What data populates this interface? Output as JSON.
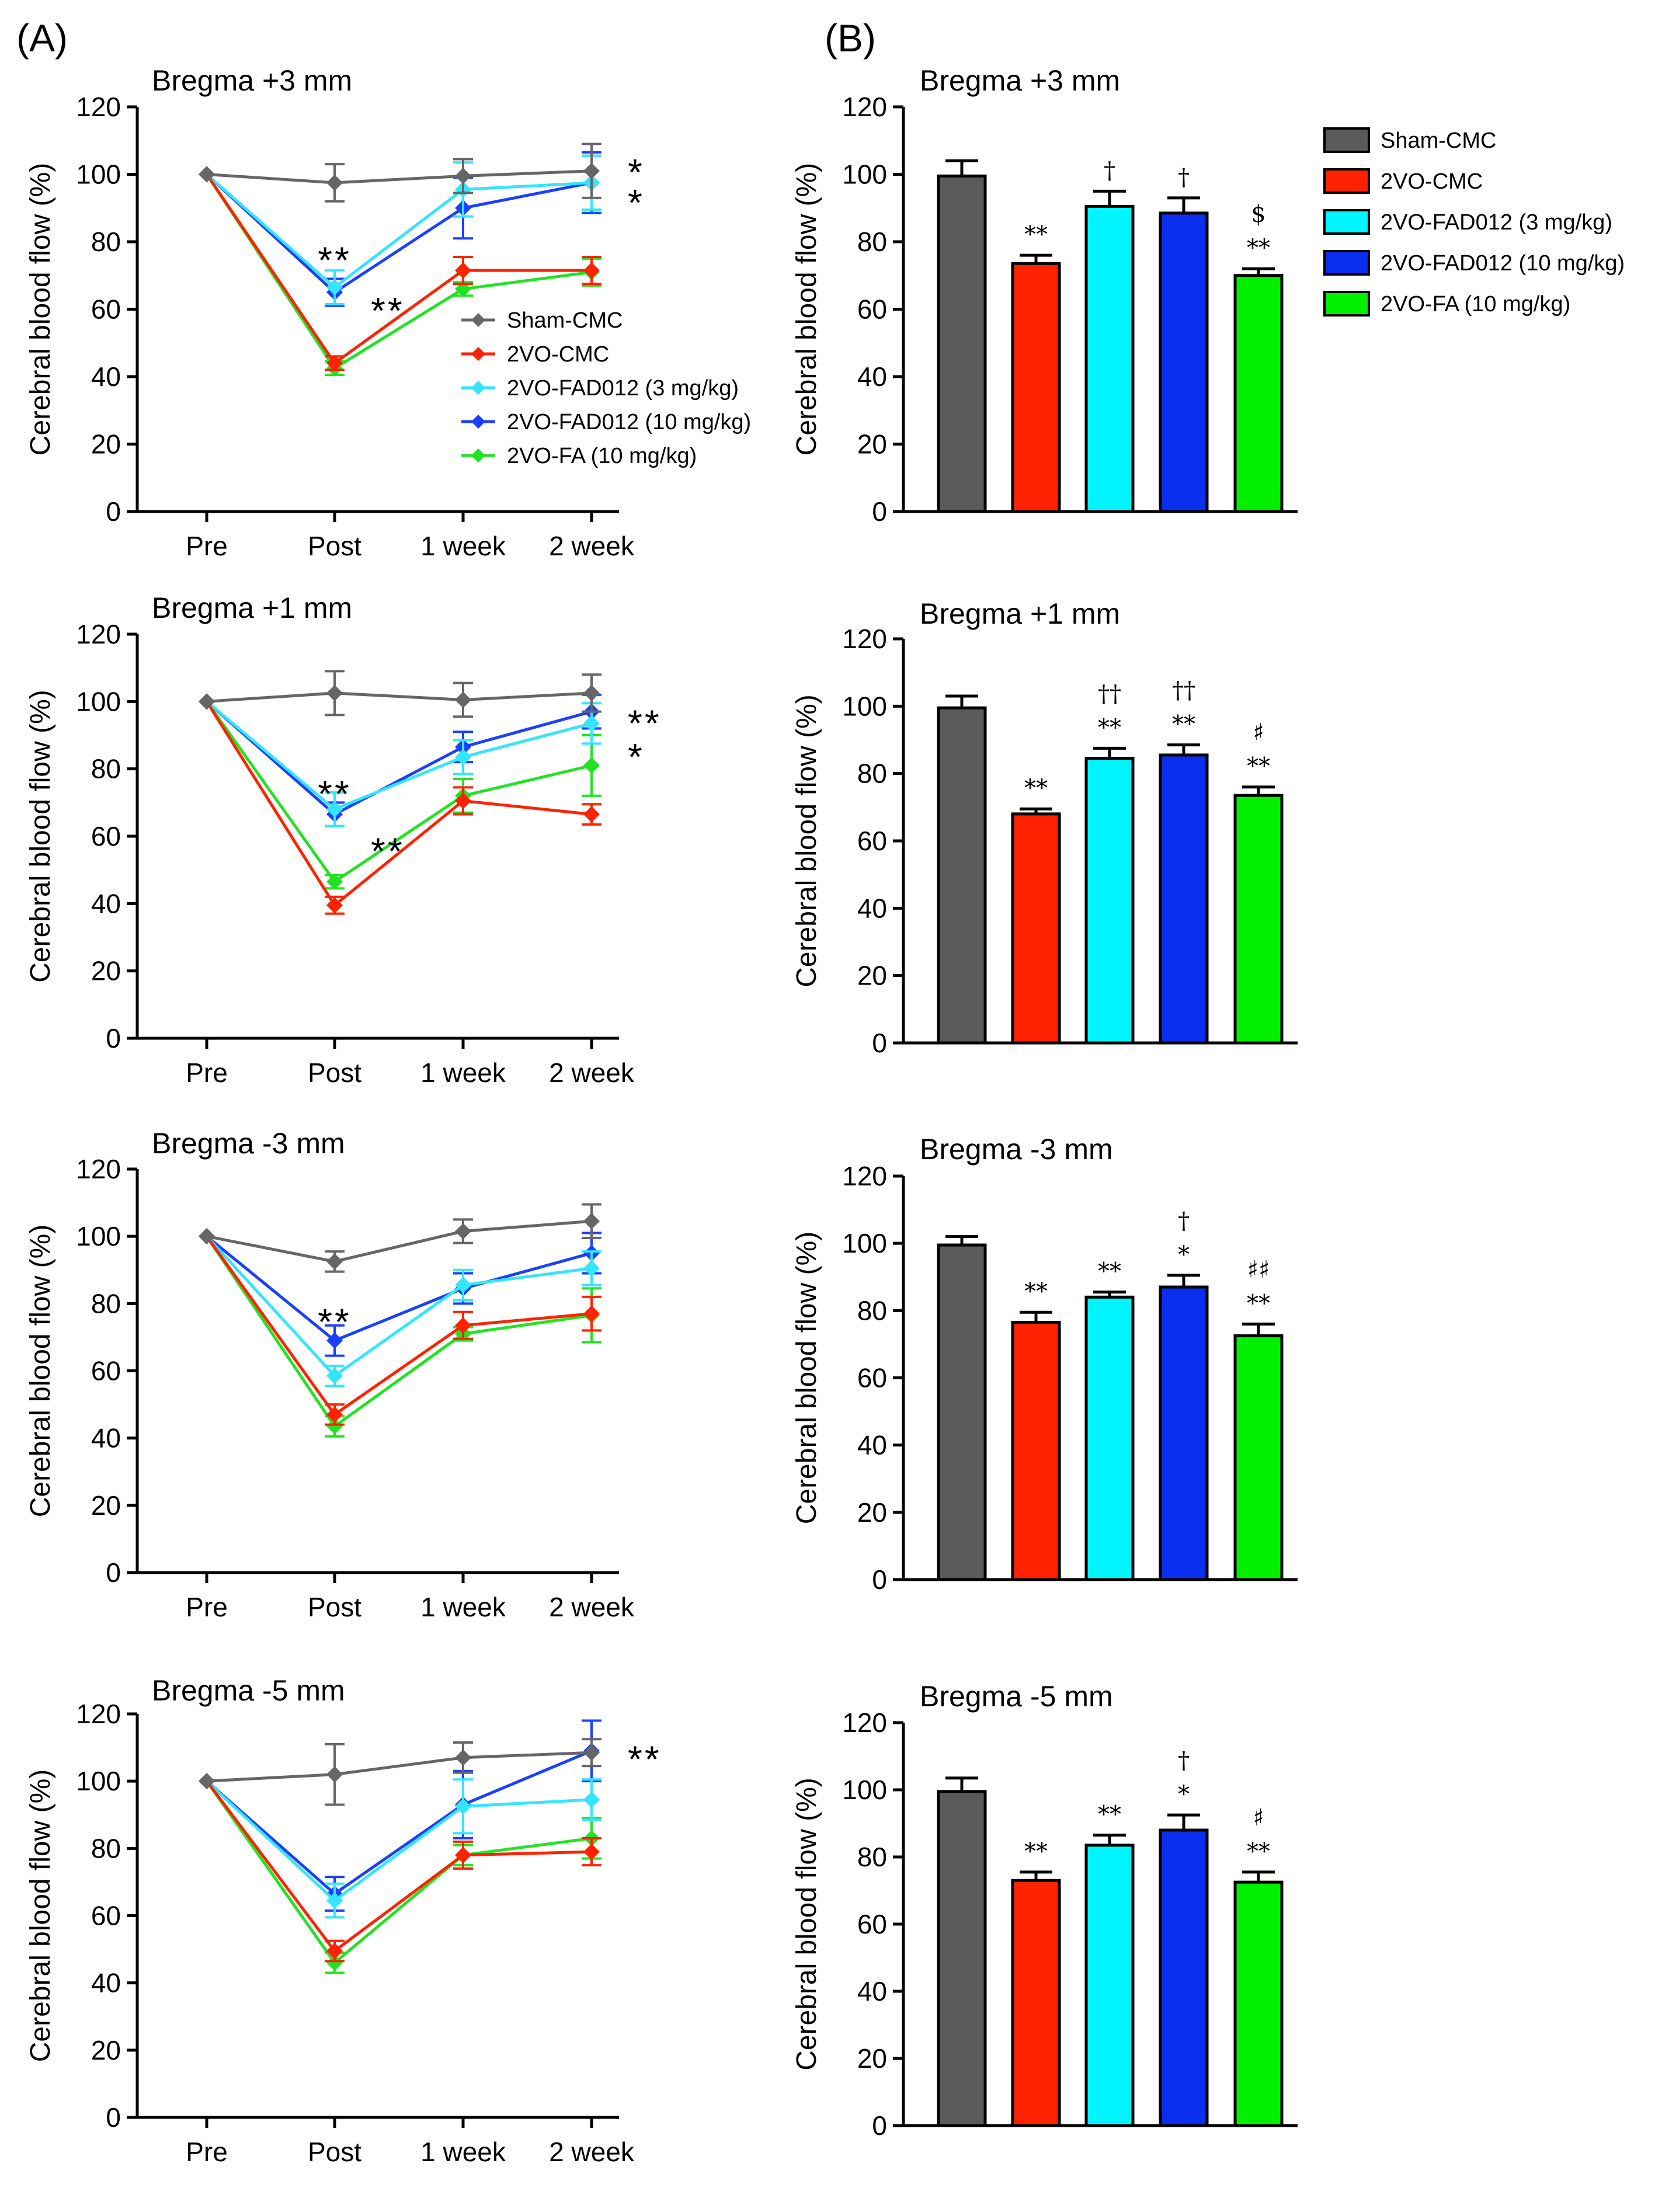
{
  "panel_labels": {
    "A": "(A)",
    "B": "(B)"
  },
  "chart_data": [
    {
      "id": "A1",
      "type": "line",
      "title": "Bregma +3 mm",
      "xlabel": "",
      "ylabel": "Cerebral blood flow (%)",
      "categories": [
        "Pre",
        "Post",
        "1 week",
        "2 week"
      ],
      "ylim": [
        0,
        120
      ],
      "yticks": [
        0,
        20,
        40,
        60,
        80,
        100,
        120
      ],
      "legend": {
        "placement": "center-right"
      },
      "series": [
        {
          "name": "Sham-CMC",
          "color": "#666666",
          "values": [
            100,
            97.5,
            99.5,
            101
          ],
          "errors": [
            0,
            5.5,
            5,
            8
          ]
        },
        {
          "name": "2VO-CMC",
          "color": "#ff2200",
          "values": [
            100,
            44,
            71.5,
            71.5
          ],
          "errors": [
            0,
            2,
            4,
            4
          ]
        },
        {
          "name": "2VO-FAD012 (3 mg/kg)",
          "color": "#33e5ff",
          "values": [
            100,
            66.5,
            95.5,
            97.5
          ],
          "errors": [
            0,
            5,
            8,
            8
          ]
        },
        {
          "name": "2VO-FAD012 (10 mg/kg)",
          "color": "#1a3fff",
          "values": [
            100,
            65,
            90,
            97.5
          ],
          "errors": [
            0,
            4,
            9,
            9
          ]
        },
        {
          "name": "2VO-FA (10 mg/kg)",
          "color": "#22e322",
          "values": [
            100,
            42.5,
            66,
            71
          ],
          "errors": [
            0,
            2,
            2,
            4
          ]
        }
      ],
      "annotations": [
        {
          "text": "**",
          "category": "Post",
          "y": 77
        },
        {
          "text": "**",
          "category": "Post",
          "y": 62,
          "offset": "right"
        },
        {
          "text": "*",
          "category": "2 week",
          "y": 103,
          "offset": "right"
        },
        {
          "text": "*",
          "category": "2 week",
          "y": 94,
          "offset": "right"
        }
      ]
    },
    {
      "id": "A2",
      "type": "line",
      "title": "Bregma +1 mm",
      "xlabel": "",
      "ylabel": "Cerebral blood flow (%)",
      "categories": [
        "Pre",
        "Post",
        "1 week",
        "2 week"
      ],
      "ylim": [
        0,
        120
      ],
      "yticks": [
        0,
        20,
        40,
        60,
        80,
        100,
        120
      ],
      "series": [
        {
          "name": "Sham-CMC",
          "color": "#666666",
          "values": [
            100,
            102.5,
            100.5,
            102.5
          ],
          "errors": [
            0,
            6.5,
            5,
            5.5
          ]
        },
        {
          "name": "2VO-CMC",
          "color": "#ff2200",
          "values": [
            100,
            39.5,
            70.5,
            66.5
          ],
          "errors": [
            0,
            2.5,
            4,
            3
          ]
        },
        {
          "name": "2VO-FAD012 (3 mg/kg)",
          "color": "#33e5ff",
          "values": [
            100,
            68,
            83.5,
            93.5
          ],
          "errors": [
            0,
            5,
            5,
            6
          ]
        },
        {
          "name": "2VO-FAD012 (10 mg/kg)",
          "color": "#1a3fff",
          "values": [
            100,
            66.5,
            86.5,
            97
          ],
          "errors": [
            0,
            3.5,
            4.5,
            5
          ]
        },
        {
          "name": "2VO-FA (10 mg/kg)",
          "color": "#22e322",
          "values": [
            100,
            46.5,
            72,
            81
          ],
          "errors": [
            0,
            2,
            5,
            9
          ]
        }
      ],
      "annotations": [
        {
          "text": "**",
          "category": "Post",
          "y": 75
        },
        {
          "text": "**",
          "category": "Post",
          "y": 58,
          "offset": "right"
        },
        {
          "text": "**",
          "category": "2 week",
          "y": 96,
          "offset": "right"
        },
        {
          "text": "*",
          "category": "2 week",
          "y": 86,
          "offset": "right"
        }
      ]
    },
    {
      "id": "A3",
      "type": "line",
      "title": "Bregma -3 mm",
      "xlabel": "",
      "ylabel": "Cerebral blood flow (%)",
      "categories": [
        "Pre",
        "Post",
        "1 week",
        "2 week"
      ],
      "ylim": [
        0,
        120
      ],
      "yticks": [
        0,
        20,
        40,
        60,
        80,
        100,
        120
      ],
      "series": [
        {
          "name": "Sham-CMC",
          "color": "#666666",
          "values": [
            100,
            92.5,
            101.5,
            104.5
          ],
          "errors": [
            0,
            3,
            3.5,
            5
          ]
        },
        {
          "name": "2VO-CMC",
          "color": "#ff2200",
          "values": [
            100,
            47,
            73.5,
            77
          ],
          "errors": [
            0,
            3,
            4,
            5
          ]
        },
        {
          "name": "2VO-FAD012 (3 mg/kg)",
          "color": "#33e5ff",
          "values": [
            100,
            58.5,
            85.5,
            90.5
          ],
          "errors": [
            0,
            3,
            4.5,
            5
          ]
        },
        {
          "name": "2VO-FAD012 (10 mg/kg)",
          "color": "#1a3fff",
          "values": [
            100,
            69,
            84.5,
            95
          ],
          "errors": [
            0,
            4.5,
            4.5,
            6
          ]
        },
        {
          "name": "2VO-FA (10 mg/kg)",
          "color": "#22e322",
          "values": [
            100,
            43.5,
            71,
            76.5
          ],
          "errors": [
            0,
            3,
            2,
            8
          ]
        }
      ],
      "annotations": [
        {
          "text": "**",
          "category": "Post",
          "y": 77
        }
      ]
    },
    {
      "id": "A4",
      "type": "line",
      "title": "Bregma -5 mm",
      "xlabel": "",
      "ylabel": "Cerebral blood flow (%)",
      "categories": [
        "Pre",
        "Post",
        "1 week",
        "2 week"
      ],
      "ylim": [
        0,
        120
      ],
      "yticks": [
        0,
        20,
        40,
        60,
        80,
        100,
        120
      ],
      "series": [
        {
          "name": "Sham-CMC",
          "color": "#666666",
          "values": [
            100,
            102,
            107,
            108.5
          ],
          "errors": [
            0,
            9,
            4.5,
            4
          ]
        },
        {
          "name": "2VO-CMC",
          "color": "#ff2200",
          "values": [
            100,
            49.5,
            78,
            79
          ],
          "errors": [
            0,
            3,
            4,
            4
          ]
        },
        {
          "name": "2VO-FAD012 (3 mg/kg)",
          "color": "#33e5ff",
          "values": [
            100,
            64.5,
            92.5,
            94.5
          ],
          "errors": [
            0,
            5,
            8,
            6
          ]
        },
        {
          "name": "2VO-FAD012 (10 mg/kg)",
          "color": "#1a3fff",
          "values": [
            100,
            66.5,
            93,
            109
          ],
          "errors": [
            0,
            5,
            10,
            9
          ]
        },
        {
          "name": "2VO-FA (10 mg/kg)",
          "color": "#22e322",
          "values": [
            100,
            46,
            78,
            83
          ],
          "errors": [
            0,
            3,
            3,
            6
          ]
        }
      ],
      "annotations": [
        {
          "text": "**",
          "category": "2 week",
          "y": 109,
          "offset": "right"
        }
      ]
    },
    {
      "id": "B1",
      "type": "bar",
      "title": "Bregma +3 mm",
      "xlabel": "",
      "ylabel": "Cerebral blood flow (%)",
      "categories": [
        "Sham-CMC",
        "2VO-CMC",
        "2VO-FAD012 (3 mg/kg)",
        "2VO-FAD012 (10 mg/kg)",
        "2VO-FA (10 mg/kg)"
      ],
      "colors": [
        "#5a5a5a",
        "#ff2200",
        "#00f5ff",
        "#0a2ef0",
        "#00f000"
      ],
      "values": [
        99.5,
        73.5,
        90.5,
        88.5,
        70
      ],
      "errors": [
        4.5,
        2.5,
        4.5,
        4.5,
        2
      ],
      "ylim": [
        0,
        120
      ],
      "yticks": [
        0,
        20,
        40,
        60,
        80,
        100,
        120
      ],
      "legend": {
        "placement": "top-right"
      },
      "sig_labels": [
        [],
        [
          "**"
        ],
        [
          "†"
        ],
        [
          "†"
        ],
        [
          "$",
          "**"
        ]
      ]
    },
    {
      "id": "B2",
      "type": "bar",
      "title": "Bregma +1 mm",
      "xlabel": "",
      "ylabel": "Cerebral blood flow (%)",
      "categories": [
        "Sham-CMC",
        "2VO-CMC",
        "2VO-FAD012 (3 mg/kg)",
        "2VO-FAD012 (10 mg/kg)",
        "2VO-FA (10 mg/kg)"
      ],
      "colors": [
        "#5a5a5a",
        "#ff2200",
        "#00f5ff",
        "#0a2ef0",
        "#00f000"
      ],
      "values": [
        99.5,
        68,
        84.5,
        85.5,
        73.5
      ],
      "errors": [
        3.5,
        1.5,
        3,
        3,
        2.5
      ],
      "ylim": [
        0,
        120
      ],
      "yticks": [
        0,
        20,
        40,
        60,
        80,
        100,
        120
      ],
      "sig_labels": [
        [],
        [
          "**"
        ],
        [
          "††",
          "**"
        ],
        [
          "††",
          "**"
        ],
        [
          "♯",
          "**"
        ]
      ]
    },
    {
      "id": "B3",
      "type": "bar",
      "title": "Bregma -3 mm",
      "xlabel": "",
      "ylabel": "Cerebral blood flow (%)",
      "categories": [
        "Sham-CMC",
        "2VO-CMC",
        "2VO-FAD012 (3 mg/kg)",
        "2VO-FAD012 (10 mg/kg)",
        "2VO-FA (10 mg/kg)"
      ],
      "colors": [
        "#5a5a5a",
        "#ff2200",
        "#00f5ff",
        "#0a2ef0",
        "#00f000"
      ],
      "values": [
        99.5,
        76.5,
        84,
        87,
        72.5
      ],
      "errors": [
        2.5,
        3,
        1.5,
        3.5,
        3.5
      ],
      "ylim": [
        0,
        120
      ],
      "yticks": [
        0,
        20,
        40,
        60,
        80,
        100,
        120
      ],
      "sig_labels": [
        [],
        [
          "**"
        ],
        [
          "**"
        ],
        [
          "†",
          "*"
        ],
        [
          "♯♯",
          "**"
        ]
      ]
    },
    {
      "id": "B4",
      "type": "bar",
      "title": "Bregma -5 mm",
      "xlabel": "",
      "ylabel": "Cerebral blood flow (%)",
      "categories": [
        "Sham-CMC",
        "2VO-CMC",
        "2VO-FAD012 (3 mg/kg)",
        "2VO-FAD012 (10 mg/kg)",
        "2VO-FA (10 mg/kg)"
      ],
      "colors": [
        "#5a5a5a",
        "#ff2200",
        "#00f5ff",
        "#0a2ef0",
        "#00f000"
      ],
      "values": [
        99.5,
        73,
        83.5,
        88,
        72.5
      ],
      "errors": [
        4,
        2.5,
        3,
        4.5,
        3
      ],
      "ylim": [
        0,
        120
      ],
      "yticks": [
        0,
        20,
        40,
        60,
        80,
        100,
        120
      ],
      "sig_labels": [
        [],
        [
          "**"
        ],
        [
          "**"
        ],
        [
          "†",
          "*"
        ],
        [
          "♯",
          "**"
        ]
      ]
    }
  ]
}
